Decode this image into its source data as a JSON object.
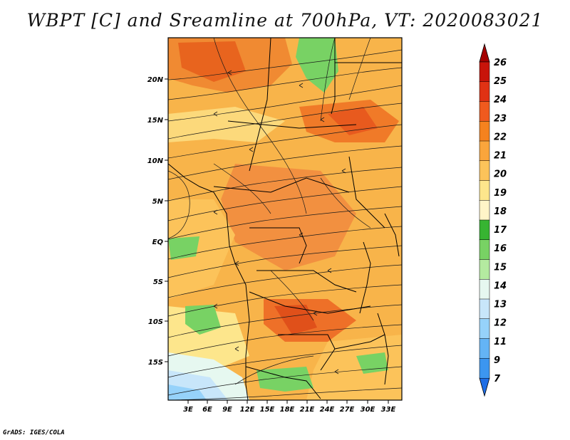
{
  "title": "WBPT [C] and Sreamline at 700hPa, VT: 2020083021",
  "footer": "GrADS: IGES/COLA",
  "map": {
    "lon_ticks": [
      "3E",
      "6E",
      "9E",
      "12E",
      "15E",
      "18E",
      "21E",
      "24E",
      "27E",
      "30E",
      "33E"
    ],
    "lat_ticks": [
      "20N",
      "15N",
      "10N",
      "5N",
      "EQ",
      "5S",
      "10S",
      "15S"
    ]
  },
  "colorbar": {
    "levels": [
      "26",
      "25",
      "24",
      "23",
      "22",
      "21",
      "20",
      "19",
      "18",
      "17",
      "16",
      "15",
      "14",
      "13",
      "12",
      "11",
      "9",
      "7"
    ],
    "colors": [
      "#a50000",
      "#c8140a",
      "#e03214",
      "#f05a1e",
      "#f5821e",
      "#faa53c",
      "#fcc35a",
      "#fde68c",
      "#fff5c8",
      "#37b432",
      "#78d264",
      "#b4eaa0",
      "#e6f8f0",
      "#c8e6fa",
      "#96d2fa",
      "#64b4f5",
      "#3c96f0",
      "#1e6ee6"
    ]
  }
}
